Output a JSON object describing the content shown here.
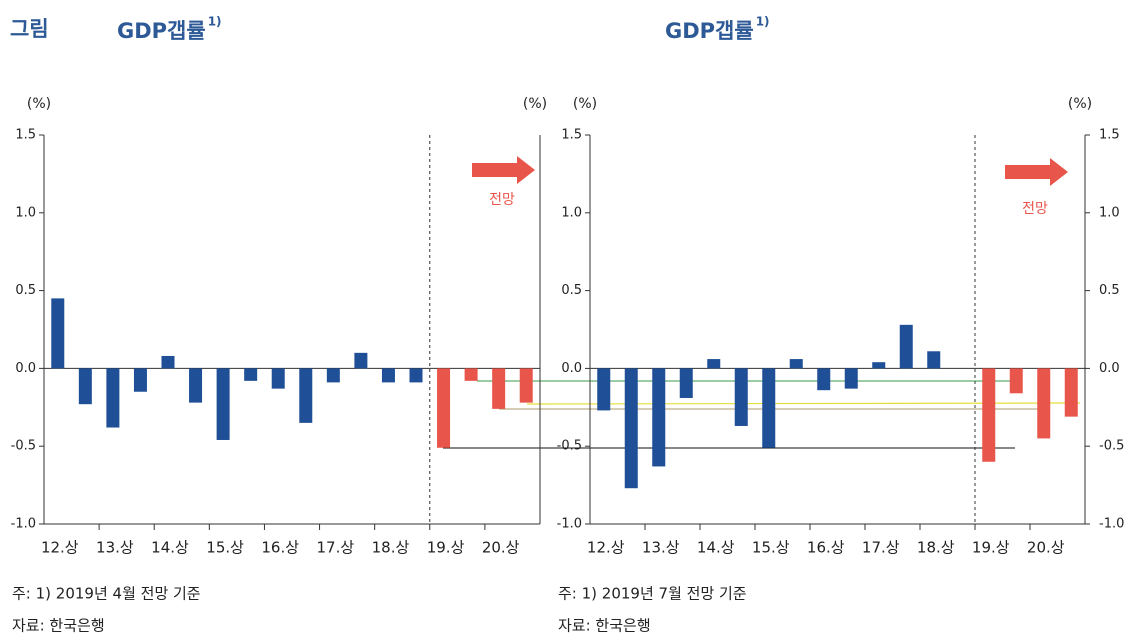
{
  "figure_label": "그림",
  "chart_data": [
    {
      "type": "bar",
      "title": "GDP갭률",
      "title_note": "1)",
      "y_unit": "(%)",
      "annotation": "전망",
      "categories": [
        "12.상",
        null,
        "13.상",
        null,
        "14.상",
        null,
        "15.상",
        null,
        "16.상",
        null,
        "17.상",
        null,
        "18.상",
        null,
        "19.상",
        null,
        "20.상",
        null
      ],
      "values": [
        0.45,
        -0.23,
        -0.38,
        -0.15,
        0.08,
        -0.22,
        -0.46,
        -0.08,
        -0.13,
        -0.35,
        -0.09,
        0.1,
        -0.09,
        -0.09,
        -0.51,
        -0.08,
        -0.26,
        -0.22
      ],
      "colors": [
        "#1f4f96",
        "#1f4f96",
        "#1f4f96",
        "#1f4f96",
        "#1f4f96",
        "#1f4f96",
        "#1f4f96",
        "#1f4f96",
        "#1f4f96",
        "#1f4f96",
        "#1f4f96",
        "#1f4f96",
        "#1f4f96",
        "#1f4f96",
        "#e8554a",
        "#e8554a",
        "#e8554a",
        "#e8554a"
      ],
      "ylim": [
        -1.0,
        1.5
      ],
      "yticks": [
        1.5,
        {
          "value": 1,
          "label": "1.0"
        },
        0.5,
        {
          "value": 0,
          "label": "0.0"
        },
        -0.5,
        {
          "value": -1,
          "label": "-1.0"
        }
      ],
      "y_ticks_right": false,
      "note": "주: 1) 2019년 4월 전망 기준",
      "source": "자료: 한국은행"
    },
    {
      "type": "bar",
      "title": "GDP갭률",
      "title_note": "1)",
      "y_unit": "(%)",
      "annotation": "전망",
      "categories": [
        "12.상",
        null,
        "13.상",
        null,
        "14.상",
        null,
        "15.상",
        null,
        "16.상",
        null,
        "17.상",
        null,
        "18.상",
        null,
        "19.상",
        null,
        "20.상",
        null
      ],
      "values": [
        -0.27,
        -0.77,
        -0.63,
        -0.19,
        0.06,
        -0.37,
        -0.51,
        0.06,
        -0.14,
        -0.13,
        0.04,
        0.28,
        0.11,
        0,
        -0.6,
        -0.16,
        -0.45,
        -0.31
      ],
      "colors": [
        "#1f4f96",
        "#1f4f96",
        "#1f4f96",
        "#1f4f96",
        "#1f4f96",
        "#1f4f96",
        "#1f4f96",
        "#1f4f96",
        "#1f4f96",
        "#1f4f96",
        "#1f4f96",
        "#1f4f96",
        "#1f4f96",
        "#1f4f96",
        "#e8554a",
        "#e8554a",
        "#e8554a",
        "#e8554a"
      ],
      "ylim": [
        -1.0,
        1.5
      ],
      "yticks": [
        1.5,
        {
          "value": 1,
          "label": "1.0"
        },
        0.5,
        {
          "value": 0,
          "label": "0.0"
        },
        -0.5,
        {
          "value": -1,
          "label": "-1.0"
        }
      ],
      "y_ticks_right": true,
      "note": "주: 1) 2019년 7월 전망 기준",
      "source": "자료: 한국은행"
    }
  ]
}
